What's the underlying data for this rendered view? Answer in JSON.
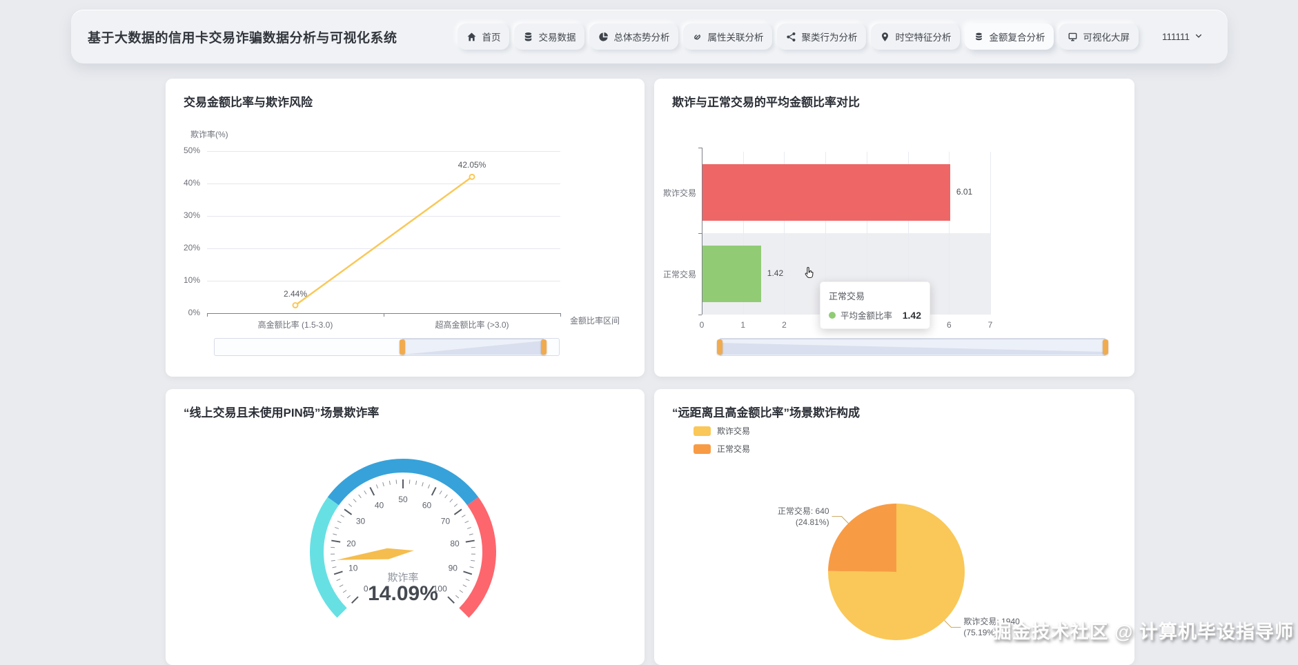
{
  "navbar": {
    "title": "基于大数据的信用卡交易诈骗数据分析与可视化系统",
    "items": [
      {
        "label": "首页",
        "icon": "home-icon",
        "active": false
      },
      {
        "label": "交易数据",
        "icon": "database-icon",
        "active": false
      },
      {
        "label": "总体态势分析",
        "icon": "pie-chart-icon",
        "active": false
      },
      {
        "label": "属性关联分析",
        "icon": "link-icon",
        "active": false
      },
      {
        "label": "聚类行为分析",
        "icon": "cluster-nodes-icon",
        "active": false
      },
      {
        "label": "时空特征分析",
        "icon": "map-marker-icon",
        "active": false
      },
      {
        "label": "金额复合分析",
        "icon": "coins-icon",
        "active": true
      },
      {
        "label": "可视化大屏",
        "icon": "screen-icon",
        "active": false
      }
    ],
    "user": {
      "name": "111111"
    }
  },
  "chart_data": [
    {
      "type": "line",
      "title": "交易金额比率与欺诈风险",
      "ylabel": "欺诈率(%)",
      "xlabel": "金额比率区间",
      "categories": [
        "高金额比率 (1.5-3.0)",
        "超高金额比率 (>3.0)"
      ],
      "values": [
        2.44,
        42.05
      ],
      "value_labels": [
        "2.44%",
        "42.05%"
      ],
      "yticks": [
        "0%",
        "10%",
        "20%",
        "30%",
        "40%",
        "50%"
      ],
      "ylim": [
        0,
        50
      ],
      "line_color": "#FAC858",
      "grid": true,
      "datazoom": {
        "start_pct": 54.5,
        "end_pct": 95.5
      }
    },
    {
      "type": "bar",
      "orientation": "horizontal",
      "title": "欺诈与正常交易的平均金额比率对比",
      "categories": [
        "欺诈交易",
        "正常交易"
      ],
      "values": [
        6.01,
        1.42
      ],
      "value_labels": [
        "6.01",
        "1.42"
      ],
      "series_colors": [
        "#EE6666",
        "#91CC75"
      ],
      "xticks": [
        "0",
        "1",
        "2",
        "3",
        "4",
        "5",
        "6",
        "7"
      ],
      "xlim": [
        0,
        7
      ],
      "grid": true,
      "tooltip": {
        "title": "正常交易",
        "series_name": "平均金额比率",
        "value": "1.42",
        "marker_color": "#91CC75"
      },
      "datazoom": {
        "start_pct": 0,
        "end_pct": 100
      }
    },
    {
      "type": "gauge",
      "title": "“线上交易且未使用PIN码”场景欺诈率",
      "name": "欺诈率",
      "value": 14.09,
      "value_label": "14.09%",
      "min": 0,
      "max": 100,
      "tick_labels": [
        "0",
        "10",
        "20",
        "30",
        "40",
        "50",
        "60",
        "70",
        "80",
        "90",
        "100"
      ],
      "segments": [
        {
          "upto_pct": 0.3,
          "color": "#67E0E3"
        },
        {
          "upto_pct": 0.7,
          "color": "#37A2DA"
        },
        {
          "upto_pct": 1.0,
          "color": "#FD666D"
        }
      ],
      "needle_color": "#F5BD4E"
    },
    {
      "type": "pie",
      "title": "“远距离且高金额比率”场景欺诈构成",
      "legend": [
        "欺诈交易",
        "正常交易"
      ],
      "slices": [
        {
          "name": "欺诈交易",
          "value": 1940,
          "pct": 75.19,
          "color": "#FAC858",
          "label_line1": "欺诈交易: 1940",
          "label_line2": "(75.19%)"
        },
        {
          "name": "正常交易",
          "value": 640,
          "pct": 24.81,
          "color": "#F89B45",
          "label_line1": "正常交易: 640",
          "label_line2": "(24.81%)"
        }
      ]
    }
  ],
  "watermark": "掘金技术社区 @ 计算机毕设指导师"
}
